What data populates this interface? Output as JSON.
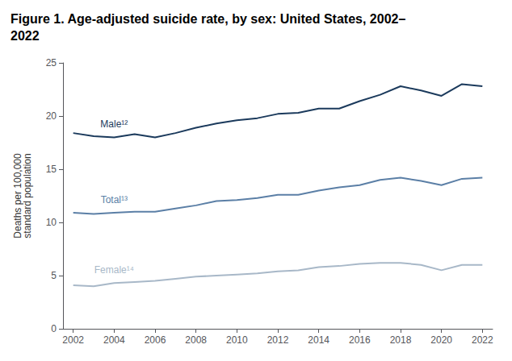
{
  "chart_data": {
    "type": "line",
    "title": "Figure 1. Age-adjusted suicide rate, by sex: United States, 2002–\n2022",
    "y_label": "Deaths per 100,000\nstandard population",
    "x": [
      2002,
      2003,
      2004,
      2005,
      2006,
      2007,
      2008,
      2009,
      2010,
      2011,
      2012,
      2013,
      2014,
      2015,
      2016,
      2017,
      2018,
      2019,
      2020,
      2021,
      2022
    ],
    "series": [
      {
        "name": "Male¹²",
        "color": "#1b3a5c",
        "values": [
          18.4,
          18.1,
          18.0,
          18.3,
          18.0,
          18.4,
          18.9,
          19.3,
          19.6,
          19.8,
          20.2,
          20.3,
          20.7,
          20.7,
          21.4,
          22.0,
          22.8,
          22.4,
          21.9,
          23.0,
          22.8
        ]
      },
      {
        "name": "Total¹³",
        "color": "#5b7fa6",
        "values": [
          10.9,
          10.8,
          10.9,
          11.0,
          11.0,
          11.3,
          11.6,
          12.0,
          12.1,
          12.3,
          12.6,
          12.6,
          13.0,
          13.3,
          13.5,
          14.0,
          14.2,
          13.9,
          13.5,
          14.1,
          14.2
        ]
      },
      {
        "name": "Female¹⁴",
        "color": "#a8b8c8",
        "values": [
          4.1,
          4.0,
          4.3,
          4.4,
          4.5,
          4.7,
          4.9,
          5.0,
          5.1,
          5.2,
          5.4,
          5.5,
          5.8,
          5.9,
          6.1,
          6.2,
          6.2,
          6.0,
          5.5,
          6.0,
          6.0
        ]
      }
    ],
    "xlim": [
      2001.5,
      2022.5
    ],
    "xticks": [
      2002,
      2004,
      2006,
      2008,
      2010,
      2012,
      2014,
      2016,
      2018,
      2020,
      2022
    ],
    "ylim": [
      0,
      25
    ],
    "yticks": [
      0,
      5,
      10,
      15,
      20,
      25
    ],
    "grid": false
  }
}
